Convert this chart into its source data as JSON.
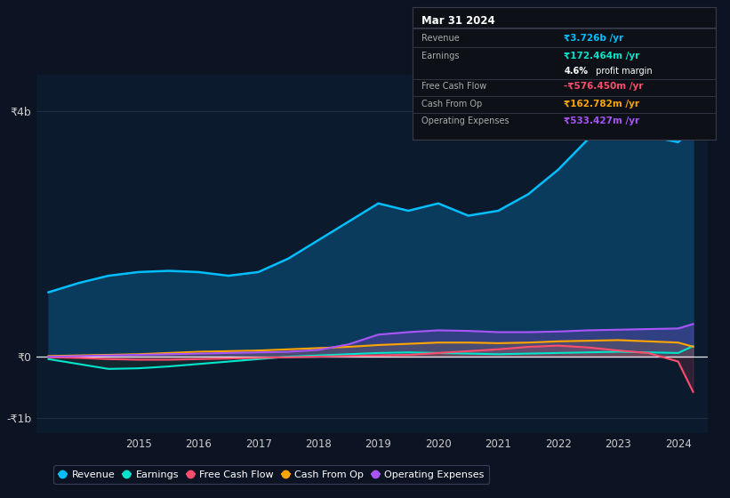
{
  "background_color": "#0c1322",
  "plot_bg_color": "#0c1a2e",
  "years": [
    2013.5,
    2014.0,
    2014.5,
    2015.0,
    2015.5,
    2016.0,
    2016.5,
    2017.0,
    2017.5,
    2018.0,
    2018.5,
    2019.0,
    2019.5,
    2020.0,
    2020.5,
    2021.0,
    2021.5,
    2022.0,
    2022.5,
    2023.0,
    2023.5,
    2024.0,
    2024.25
  ],
  "revenue": [
    1.05,
    1.2,
    1.32,
    1.38,
    1.4,
    1.38,
    1.32,
    1.38,
    1.6,
    1.9,
    2.2,
    2.5,
    2.38,
    2.5,
    2.3,
    2.38,
    2.65,
    3.05,
    3.55,
    3.85,
    3.6,
    3.5,
    3.726
  ],
  "earnings": [
    -0.04,
    -0.12,
    -0.2,
    -0.19,
    -0.16,
    -0.12,
    -0.08,
    -0.04,
    0.0,
    0.02,
    0.04,
    0.06,
    0.07,
    0.06,
    0.05,
    0.04,
    0.05,
    0.06,
    0.07,
    0.08,
    0.07,
    0.06,
    0.172
  ],
  "free_cash_flow": [
    -0.01,
    -0.02,
    -0.04,
    -0.05,
    -0.05,
    -0.04,
    -0.03,
    -0.02,
    -0.01,
    0.0,
    0.01,
    0.02,
    0.03,
    0.06,
    0.09,
    0.12,
    0.16,
    0.18,
    0.15,
    0.1,
    0.06,
    -0.08,
    -0.576
  ],
  "cash_from_op": [
    0.01,
    0.02,
    0.03,
    0.04,
    0.06,
    0.08,
    0.09,
    0.1,
    0.12,
    0.14,
    0.16,
    0.19,
    0.21,
    0.23,
    0.23,
    0.22,
    0.23,
    0.25,
    0.26,
    0.27,
    0.25,
    0.23,
    0.163
  ],
  "operating_expenses": [
    0.0,
    0.01,
    0.02,
    0.03,
    0.04,
    0.05,
    0.06,
    0.07,
    0.08,
    0.11,
    0.2,
    0.36,
    0.4,
    0.43,
    0.42,
    0.4,
    0.4,
    0.41,
    0.43,
    0.44,
    0.45,
    0.46,
    0.533
  ],
  "revenue_color": "#00bfff",
  "revenue_fill_color": "#0a3a5c",
  "earnings_color": "#00e5cc",
  "earnings_fill_color": "#1a3030",
  "free_cash_flow_color": "#ff4d6d",
  "cash_from_op_color": "#ffa500",
  "operating_expenses_color": "#a855f7",
  "yticks": [
    -1,
    0,
    4
  ],
  "ylabels": [
    "-₹1b",
    "₹0",
    "₹4b"
  ],
  "ylim": [
    -1.25,
    4.6
  ],
  "xlim": [
    2013.3,
    2024.5
  ],
  "xtick_years": [
    2015,
    2016,
    2017,
    2018,
    2019,
    2020,
    2021,
    2022,
    2023,
    2024
  ],
  "info_rows": [
    {
      "label": "Revenue",
      "value": "₹3.726b /yr",
      "color": "#00bfff"
    },
    {
      "label": "Earnings",
      "value": "₹172.464m /yr",
      "color": "#00e5cc"
    },
    {
      "label": "",
      "value": "4.6% profit margin",
      "color": "#ffffff"
    },
    {
      "label": "Free Cash Flow",
      "value": "-₹576.450m /yr",
      "color": "#ff4d6d"
    },
    {
      "label": "Cash From Op",
      "value": "₹162.782m /yr",
      "color": "#ffa500"
    },
    {
      "label": "Operating Expenses",
      "value": "₹533.427m /yr",
      "color": "#a855f7"
    }
  ]
}
